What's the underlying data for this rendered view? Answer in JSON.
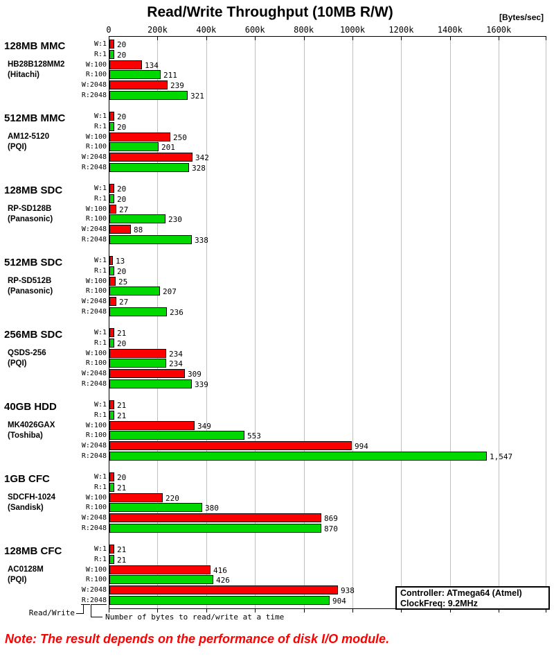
{
  "chart_data": {
    "type": "bar",
    "orientation": "horizontal",
    "title": "Read/Write Throughput (10MB R/W)",
    "axis": {
      "unit": "[Bytes/sec]",
      "tick_labels": [
        "0",
        "200k",
        "400k",
        "600k",
        "800k",
        "1000k",
        "1200k",
        "1400k",
        "1600k"
      ],
      "tick_step_bytes_per_sec": 200000,
      "axis_min": 0,
      "axis_max_labeled": 1600000,
      "gridlines": true,
      "gridline_color": "#c0c0c0"
    },
    "row_labels": [
      "W:1",
      "R:1",
      "W:100",
      "R:100",
      "W:2048",
      "R:2048"
    ],
    "colors": {
      "write_bar": "#fa0000",
      "read_bar": "#00d800",
      "bar_border": "#000000"
    },
    "groups": [
      {
        "name": "128MB MMC",
        "model": "HB28B128MM2",
        "maker": "(Hitachi)",
        "values_kbytes_per_sec": [
          20,
          20,
          134,
          211,
          239,
          321
        ]
      },
      {
        "name": "512MB MMC",
        "model": "AM12-5120",
        "maker": "(PQI)",
        "values_kbytes_per_sec": [
          20,
          20,
          250,
          201,
          342,
          328
        ]
      },
      {
        "name": "128MB SDC",
        "model": "RP-SD128B",
        "maker": "(Panasonic)",
        "values_kbytes_per_sec": [
          20,
          20,
          27,
          230,
          88,
          338
        ]
      },
      {
        "name": "512MB SDC",
        "model": "RP-SD512B",
        "maker": "(Panasonic)",
        "values_kbytes_per_sec": [
          13,
          20,
          25,
          207,
          27,
          236
        ]
      },
      {
        "name": "256MB SDC",
        "model": "QSDS-256",
        "maker": "(PQI)",
        "values_kbytes_per_sec": [
          21,
          20,
          234,
          234,
          309,
          339
        ]
      },
      {
        "name": "40GB HDD",
        "model": "MK4026GAX",
        "maker": "(Toshiba)",
        "values_kbytes_per_sec": [
          21,
          21,
          349,
          553,
          994,
          1547
        ]
      },
      {
        "name": "1GB CFC",
        "model": "SDCFH-1024",
        "maker": "(Sandisk)",
        "values_kbytes_per_sec": [
          20,
          21,
          220,
          380,
          869,
          870
        ]
      },
      {
        "name": "128MB CFC",
        "model": "AC0128M",
        "maker": "(PQI)",
        "values_kbytes_per_sec": [
          21,
          21,
          416,
          426,
          938,
          904
        ]
      }
    ]
  },
  "footnote": {
    "read_write_label": "Read/Write",
    "bytes_label": "Number of bytes to read/write at a time"
  },
  "info_box": {
    "line1": "Controller: ATmega64 (Atmel)",
    "line2": "ClockFreq: 9.2MHz"
  },
  "note": {
    "text": "Note: The result depends on the performance of disk I/O module.",
    "color": "#ff0000"
  }
}
